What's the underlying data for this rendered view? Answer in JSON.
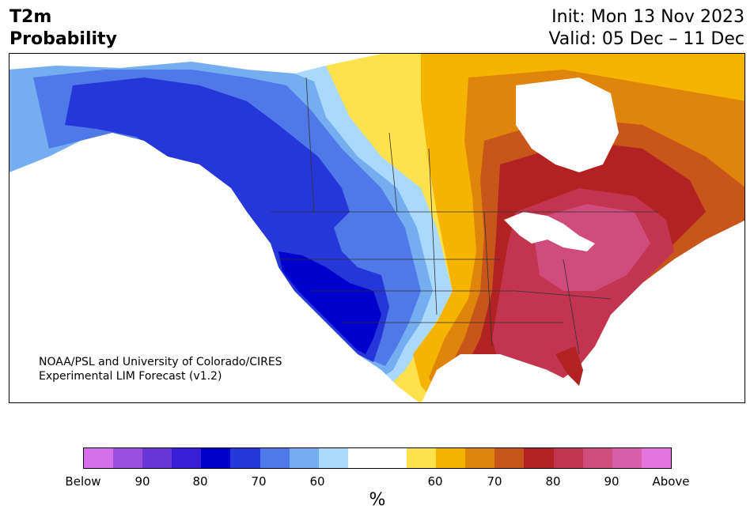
{
  "header": {
    "title_line1": "T2m",
    "title_line2": "Probability",
    "init": "Init: Mon 13 Nov 2023",
    "valid": "Valid: 05 Dec – 11 Dec"
  },
  "credit": {
    "line1": "NOAA/PSL and University of Colorado/CIRES",
    "line2": "Experimental LIM Forecast (v1.2)"
  },
  "colorbar": {
    "colors": [
      "#d570ea",
      "#9b4fdf",
      "#6a36d8",
      "#3a1ed6",
      "#0000cc",
      "#2637d9",
      "#4f78e8",
      "#75aef0",
      "#abd9fb",
      "#ffffff",
      "#ffffff",
      "#ffe14d",
      "#f4b400",
      "#e0850c",
      "#c8561a",
      "#b22222",
      "#c2344f",
      "#cf4c7d",
      "#d95fac",
      "#e574e0"
    ],
    "labels": [
      "Below",
      "90",
      "80",
      "70",
      "60",
      "60",
      "70",
      "80",
      "90",
      "Above"
    ],
    "unit": "%"
  },
  "map_colors": {
    "ocean": "#ffffff",
    "below_90": "#0000cc",
    "below_80": "#2637d9",
    "below_70": "#4f78e8",
    "below_60": "#75aef0",
    "below_50": "#abd9fb",
    "neutral": "#ffffff",
    "above_50": "#ffe14d",
    "above_60": "#f4b400",
    "above_70": "#e0850c",
    "above_75": "#c8561a",
    "above_80": "#b22222",
    "above_85": "#c2344f",
    "above_90": "#cf4c7d",
    "border": "#333333"
  }
}
